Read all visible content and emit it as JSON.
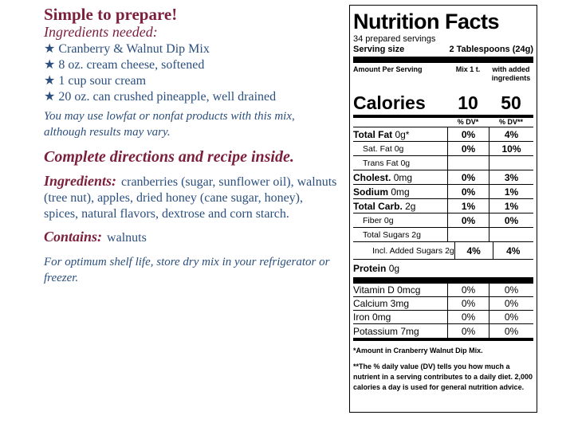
{
  "left": {
    "heading": "Simple to prepare!",
    "ingredients_needed": "Ingredients needed:",
    "needed_items": [
      "Cranberry & Walnut Dip Mix",
      "8 oz. cream cheese, softened",
      "1 cup sour cream",
      "20 oz. can crushed pineapple, well drained"
    ],
    "lowfat_note": "You may use lowfat or nonfat products with this mix, although results may vary.",
    "directions": "Complete directions and recipe inside.",
    "ingredients_label": "Ingredients:",
    "ingredients_text": "cranberries (sugar, sunflower oil), walnuts (tree nut), apples, dried honey (cane sugar, honey), spices, natural flavors, dextrose and corn starch.",
    "contains_label": "Contains:",
    "contains_text": "walnuts",
    "storage_note": "For optimum shelf life, store dry mix in your refrigerator or freezer.",
    "star_glyph": "★"
  },
  "nutrition": {
    "title": "Nutrition Facts",
    "servings": "34 prepared servings",
    "serving_size_label": "Serving size",
    "serving_size_value": "2 Tablespoons (24g)",
    "amount_per_serving": "Amount Per Serving",
    "col1_header": "Mix 1 t.",
    "col2_header": "with added ingredients",
    "calories_label": "Calories",
    "calories_mix": "10",
    "calories_added": "50",
    "dv_col1": "% DV*",
    "dv_col2": "% DV**",
    "nutrients": [
      {
        "name": "Total Fat",
        "amount": "0g*",
        "mix": "0%",
        "added": "4%"
      },
      {
        "name": "Sat. Fat",
        "amount": "0g",
        "mix": "0%",
        "added": "10%"
      },
      {
        "name": "Trans Fat",
        "amount": "0g",
        "mix": "",
        "added": ""
      },
      {
        "name": "Cholest.",
        "amount": "0mg",
        "mix": "0%",
        "added": "3%"
      },
      {
        "name": "Sodium",
        "amount": "0mg",
        "mix": "0%",
        "added": "1%"
      },
      {
        "name": "Total Carb.",
        "amount": "2g",
        "mix": "1%",
        "added": "1%"
      },
      {
        "name": "Fiber",
        "amount": "0g",
        "mix": "0%",
        "added": "0%"
      },
      {
        "name": "Total Sugars",
        "amount": "2g",
        "mix": "",
        "added": ""
      },
      {
        "name": "Incl. Added Sugars",
        "amount": "2g",
        "mix": "4%",
        "added": "4%"
      },
      {
        "name": "Protein",
        "amount": "0g",
        "mix": "",
        "added": ""
      }
    ],
    "vitamins": [
      {
        "name": "Vitamin D 0mcg",
        "mix": "0%",
        "added": "0%"
      },
      {
        "name": "Calcium 3mg",
        "mix": "0%",
        "added": "0%"
      },
      {
        "name": "Iron 0mg",
        "mix": "0%",
        "added": "0%"
      },
      {
        "name": "Potassium 7mg",
        "mix": "0%",
        "added": "0%"
      }
    ],
    "footnote1": "*Amount in Cranberry Walnut Dip Mix.",
    "footnote2": "**The % daily value (DV) tells you how much a nutrient in a serving contributes to a daily diet. 2,000 calories a day is used for general nutrition advice."
  }
}
